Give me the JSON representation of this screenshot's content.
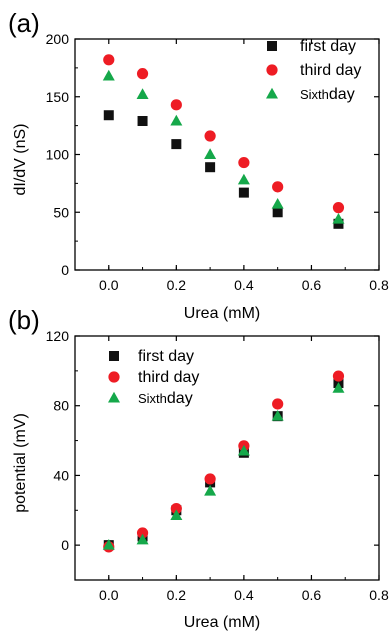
{
  "chart_data": [
    {
      "panel_label": "(a)",
      "type": "scatter",
      "xlabel": "Urea (mM)",
      "ylabel": "dI/dV (nS)",
      "xlim": [
        -0.1,
        0.8
      ],
      "ylim": [
        0,
        200
      ],
      "xticks": [
        "0.0",
        "0.2",
        "0.4",
        "0.6",
        "0.8"
      ],
      "xtick_values": [
        0.0,
        0.2,
        0.4,
        0.6,
        0.8
      ],
      "yticks": [
        "0",
        "50",
        "100",
        "150",
        "200"
      ],
      "ytick_values": [
        0,
        50,
        100,
        150,
        200
      ],
      "legend_position": "top-right",
      "series": [
        {
          "name": "first day",
          "marker": "square",
          "color": "#111111",
          "x": [
            0.0,
            0.1,
            0.2,
            0.3,
            0.4,
            0.5,
            0.68
          ],
          "y": [
            134,
            129,
            109,
            89,
            67,
            50,
            40
          ]
        },
        {
          "name": "third day",
          "marker": "circle",
          "color": "#ee1c24",
          "x": [
            0.0,
            0.1,
            0.2,
            0.3,
            0.4,
            0.5,
            0.68
          ],
          "y": [
            182,
            170,
            143,
            116,
            93,
            72,
            54
          ]
        },
        {
          "name": "Sixth",
          "name_suffix": "day",
          "marker": "triangle",
          "color": "#15a84a",
          "x": [
            0.0,
            0.1,
            0.2,
            0.3,
            0.4,
            0.5,
            0.68
          ],
          "y": [
            168,
            152,
            129,
            100,
            78,
            57,
            44
          ]
        }
      ]
    },
    {
      "panel_label": "(b)",
      "type": "scatter",
      "xlabel": "Urea (mM)",
      "ylabel": "potential (mV)",
      "xlim": [
        -0.1,
        0.8
      ],
      "ylim": [
        -20,
        120
      ],
      "xticks": [
        "0.0",
        "0.2",
        "0.4",
        "0.6",
        "0.8"
      ],
      "xtick_values": [
        0.0,
        0.2,
        0.4,
        0.6,
        0.8
      ],
      "yticks": [
        "0",
        "40",
        "80",
        "120"
      ],
      "ytick_values": [
        0,
        40,
        80,
        120
      ],
      "legend_position": "top-left",
      "series": [
        {
          "name": "first day",
          "marker": "square",
          "color": "#111111",
          "x": [
            0.0,
            0.1,
            0.2,
            0.3,
            0.4,
            0.5,
            0.68
          ],
          "y": [
            0,
            5,
            20,
            36,
            53,
            74,
            93
          ]
        },
        {
          "name": "third day",
          "marker": "circle",
          "color": "#ee1c24",
          "x": [
            0.0,
            0.1,
            0.2,
            0.3,
            0.4,
            0.5,
            0.68
          ],
          "y": [
            -1,
            7,
            21,
            38,
            57,
            81,
            97
          ]
        },
        {
          "name": "Sixth",
          "name_suffix": "day",
          "marker": "triangle",
          "color": "#15a84a",
          "x": [
            0.0,
            0.1,
            0.2,
            0.3,
            0.4,
            0.5,
            0.68
          ],
          "y": [
            0,
            3,
            17,
            31,
            54,
            74,
            90
          ]
        }
      ]
    }
  ]
}
